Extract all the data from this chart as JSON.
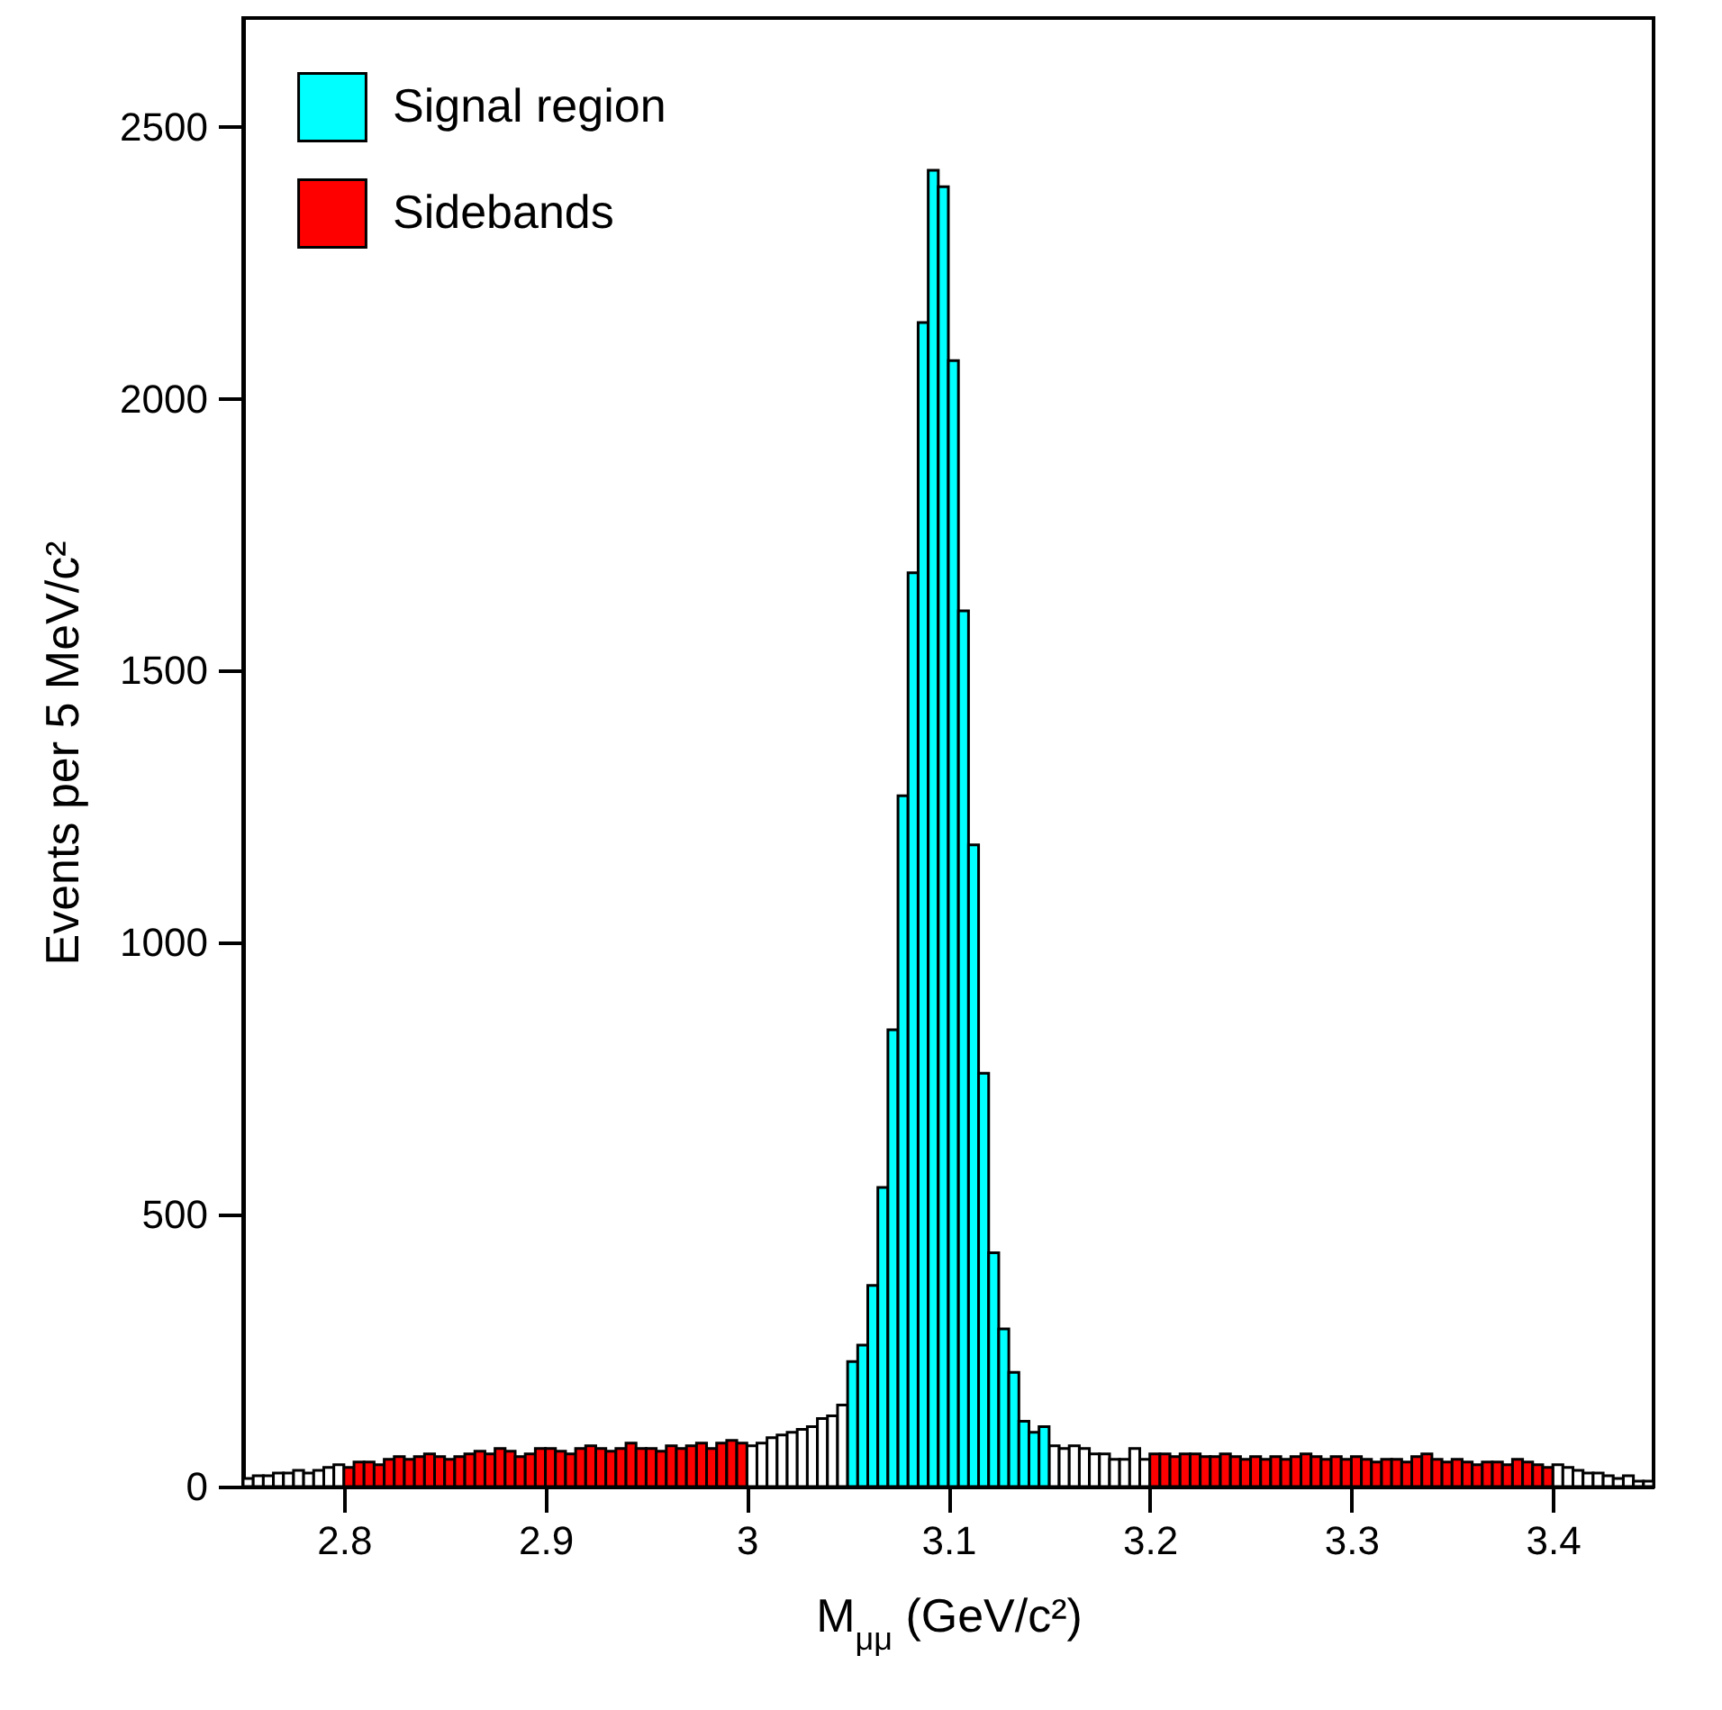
{
  "chart_data": {
    "type": "histogram",
    "xlabel": "M$_{μμ}$ (GeV/c²)",
    "ylabel": "Events per 5 MeV/c²",
    "bins": [
      2.75,
      2.755,
      2.76,
      2.765,
      2.77,
      2.775,
      2.78,
      2.785,
      2.79,
      2.795,
      2.8,
      2.805,
      2.81,
      2.815,
      2.82,
      2.825,
      2.83,
      2.835,
      2.84,
      2.845,
      2.85,
      2.855,
      2.86,
      2.865,
      2.87,
      2.875,
      2.88,
      2.885,
      2.89,
      2.895,
      2.9,
      2.905,
      2.91,
      2.915,
      2.92,
      2.925,
      2.93,
      2.935,
      2.94,
      2.945,
      2.95,
      2.955,
      2.96,
      2.965,
      2.97,
      2.975,
      2.98,
      2.985,
      2.99,
      2.995,
      3.0,
      3.005,
      3.01,
      3.015,
      3.02,
      3.025,
      3.03,
      3.035,
      3.04,
      3.045,
      3.05,
      3.055,
      3.06,
      3.065,
      3.07,
      3.075,
      3.08,
      3.085,
      3.09,
      3.095,
      3.1,
      3.105,
      3.11,
      3.115,
      3.12,
      3.125,
      3.13,
      3.135,
      3.14,
      3.145,
      3.15,
      3.155,
      3.16,
      3.165,
      3.17,
      3.175,
      3.18,
      3.185,
      3.19,
      3.195,
      3.2,
      3.205,
      3.21,
      3.215,
      3.22,
      3.225,
      3.23,
      3.235,
      3.24,
      3.245,
      3.25,
      3.255,
      3.26,
      3.265,
      3.27,
      3.275,
      3.28,
      3.285,
      3.29,
      3.295,
      3.3,
      3.305,
      3.31,
      3.315,
      3.32,
      3.325,
      3.33,
      3.335,
      3.34,
      3.345,
      3.35,
      3.355,
      3.36,
      3.365,
      3.37,
      3.375,
      3.38,
      3.385,
      3.39,
      3.395,
      3.4,
      3.405,
      3.41,
      3.415,
      3.42,
      3.425,
      3.43,
      3.435,
      3.44,
      3.445,
      3.45
    ],
    "series": [
      {
        "color": "#ffffff",
        "values": [
          15,
          20,
          20,
          25,
          25,
          30,
          25,
          30,
          35,
          40,
          null,
          null,
          null,
          null,
          null,
          null,
          null,
          null,
          null,
          null,
          null,
          null,
          null,
          null,
          null,
          null,
          null,
          null,
          null,
          null,
          null,
          null,
          null,
          null,
          null,
          null,
          null,
          null,
          null,
          null,
          null,
          null,
          null,
          null,
          null,
          null,
          null,
          null,
          null,
          null,
          75,
          80,
          90,
          95,
          100,
          105,
          110,
          125,
          130,
          150,
          null,
          null,
          null,
          null,
          null,
          null,
          null,
          null,
          null,
          null,
          null,
          null,
          null,
          null,
          null,
          null,
          null,
          null,
          null,
          null,
          75,
          70,
          75,
          70,
          60,
          60,
          50,
          50,
          70,
          50,
          null,
          null,
          null,
          null,
          null,
          null,
          null,
          null,
          null,
          null,
          null,
          null,
          null,
          null,
          null,
          null,
          null,
          null,
          null,
          null,
          null,
          null,
          null,
          null,
          null,
          null,
          null,
          null,
          null,
          null,
          null,
          null,
          null,
          null,
          null,
          null,
          null,
          null,
          null,
          null,
          40,
          35,
          30,
          25,
          25,
          20,
          15,
          20,
          10,
          10
        ]
      },
      {
        "name": "Signal region",
        "color": "#00ffff",
        "values": [
          null,
          null,
          null,
          null,
          null,
          null,
          null,
          null,
          null,
          null,
          null,
          null,
          null,
          null,
          null,
          null,
          null,
          null,
          null,
          null,
          null,
          null,
          null,
          null,
          null,
          null,
          null,
          null,
          null,
          null,
          null,
          null,
          null,
          null,
          null,
          null,
          null,
          null,
          null,
          null,
          null,
          null,
          null,
          null,
          null,
          null,
          null,
          null,
          null,
          null,
          null,
          null,
          null,
          null,
          null,
          null,
          null,
          null,
          null,
          null,
          230,
          260,
          370,
          550,
          840,
          1270,
          1680,
          2140,
          2420,
          2390,
          2070,
          1610,
          1180,
          760,
          430,
          290,
          210,
          120,
          100,
          110,
          null,
          null,
          null,
          null,
          null,
          null,
          null,
          null,
          null,
          null,
          null,
          null,
          null,
          null,
          null,
          null,
          null,
          null,
          null,
          null,
          null,
          null,
          null,
          null,
          null,
          null,
          null,
          null,
          null,
          null,
          null,
          null,
          null,
          null,
          null,
          null,
          null,
          null,
          null,
          null,
          null,
          null,
          null,
          null,
          null,
          null,
          null,
          null,
          null,
          null,
          null,
          null,
          null,
          null,
          null,
          null,
          null,
          null,
          null,
          null
        ]
      },
      {
        "name": "Sidebands",
        "color": "#ff0000",
        "values": [
          null,
          null,
          null,
          null,
          null,
          null,
          null,
          null,
          null,
          null,
          35,
          45,
          45,
          40,
          50,
          55,
          50,
          55,
          60,
          55,
          50,
          55,
          60,
          65,
          60,
          70,
          65,
          55,
          60,
          70,
          70,
          65,
          60,
          70,
          75,
          70,
          65,
          70,
          80,
          70,
          70,
          65,
          75,
          70,
          75,
          80,
          70,
          80,
          85,
          80,
          null,
          null,
          null,
          null,
          null,
          null,
          null,
          null,
          null,
          null,
          null,
          null,
          null,
          null,
          null,
          null,
          null,
          null,
          null,
          null,
          null,
          null,
          null,
          null,
          null,
          null,
          null,
          null,
          null,
          null,
          null,
          null,
          null,
          null,
          null,
          null,
          null,
          null,
          null,
          null,
          60,
          60,
          55,
          60,
          60,
          55,
          55,
          60,
          55,
          50,
          55,
          50,
          55,
          50,
          55,
          60,
          55,
          50,
          55,
          50,
          55,
          50,
          45,
          50,
          50,
          45,
          55,
          60,
          50,
          45,
          50,
          45,
          40,
          45,
          45,
          40,
          50,
          45,
          40,
          35,
          null,
          null,
          null,
          null,
          null,
          null,
          null,
          null,
          null,
          null
        ]
      }
    ],
    "xlim": [
      2.75,
      3.45
    ],
    "xticks": [
      2.8,
      2.9,
      3,
      3.1,
      3.2,
      3.3,
      3.4
    ],
    "ylim": [
      0,
      2700
    ],
    "yticks": [
      0,
      500,
      1000,
      1500,
      2000,
      2500
    ],
    "grid": false,
    "legend": "top left"
  }
}
